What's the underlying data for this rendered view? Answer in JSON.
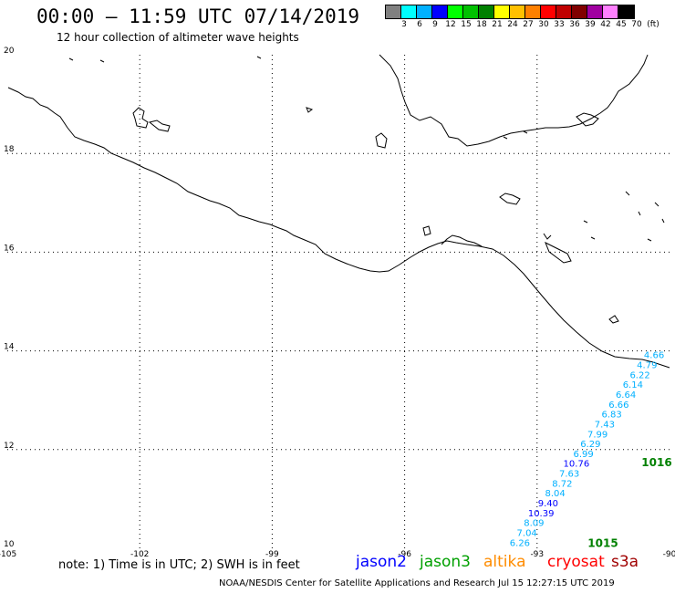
{
  "header": {
    "title": "00:00 – 11:59 UTC 07/14/2019",
    "subtitle": "12 hour collection of altimeter wave heights"
  },
  "legend": {
    "swatches": [
      {
        "label": "3",
        "color": "#808080"
      },
      {
        "label": "6",
        "color": "#00ffff"
      },
      {
        "label": "9",
        "color": "#00b0ff"
      },
      {
        "label": "12",
        "color": "#0000ff"
      },
      {
        "label": "15",
        "color": "#00ff00"
      },
      {
        "label": "18",
        "color": "#00c000"
      },
      {
        "label": "21",
        "color": "#008000"
      },
      {
        "label": "24",
        "color": "#ffff00"
      },
      {
        "label": "27",
        "color": "#ffc000"
      },
      {
        "label": "30",
        "color": "#ff8000"
      },
      {
        "label": "33",
        "color": "#ff0000"
      },
      {
        "label": "36",
        "color": "#c00000"
      },
      {
        "label": "39",
        "color": "#800000"
      },
      {
        "label": "42",
        "color": "#a000a0"
      },
      {
        "label": "45",
        "color": "#ff80ff"
      },
      {
        "label": "70",
        "color": "#000000"
      }
    ],
    "unit": "(ft)"
  },
  "map": {
    "lon_labels": [
      "-105",
      "-102",
      "-99",
      "-96",
      "-93",
      "-90"
    ],
    "lat_labels": [
      "20",
      "18",
      "16",
      "14",
      "12",
      "10"
    ],
    "lon_range": [
      -105,
      -90
    ],
    "lat_range": [
      10,
      20
    ]
  },
  "track": {
    "color_light": "#00b0ff",
    "color_dark": "#0000ff",
    "color_green": "#008000",
    "points": [
      {
        "lat": 13.85,
        "value": "4.66",
        "tone": "light"
      },
      {
        "lat": 13.65,
        "value": "4.79",
        "tone": "light"
      },
      {
        "lat": 13.45,
        "value": "6.22",
        "tone": "light"
      },
      {
        "lat": 13.25,
        "value": "6.14",
        "tone": "light"
      },
      {
        "lat": 13.05,
        "value": "6.64",
        "tone": "light"
      },
      {
        "lat": 12.85,
        "value": "6.66",
        "tone": "light"
      },
      {
        "lat": 12.65,
        "value": "6.83",
        "tone": "light"
      },
      {
        "lat": 12.45,
        "value": "7.43",
        "tone": "light"
      },
      {
        "lat": 12.25,
        "value": "7.99",
        "tone": "light"
      },
      {
        "lat": 12.05,
        "value": "6.29",
        "tone": "light"
      },
      {
        "lat": 11.85,
        "value": "6.99",
        "tone": "light"
      },
      {
        "lat": 11.65,
        "value": "10.76",
        "tone": "dark"
      },
      {
        "lat": 11.45,
        "value": "7.63",
        "tone": "light"
      },
      {
        "lat": 11.25,
        "value": "8.72",
        "tone": "light"
      },
      {
        "lat": 11.05,
        "value": "8.04",
        "tone": "light"
      },
      {
        "lat": 10.85,
        "value": "9.40",
        "tone": "dark"
      },
      {
        "lat": 10.65,
        "value": "10.39",
        "tone": "dark"
      },
      {
        "lat": 10.45,
        "value": "8.09",
        "tone": "light"
      },
      {
        "lat": 10.25,
        "value": "7.04",
        "tone": "light"
      },
      {
        "lat": 10.05,
        "value": "6.26",
        "tone": "light"
      }
    ],
    "time_labels": [
      {
        "lat": 11.68,
        "text": "1016"
      },
      {
        "lat": 10.05,
        "text": "1015"
      }
    ]
  },
  "footer": {
    "note": "note: 1) Time is in UTC; 2) SWH is in feet",
    "satellites": [
      {
        "name": "jason2",
        "color": "#0000ff"
      },
      {
        "name": "jason3",
        "color": "#00a000"
      },
      {
        "name": "altika",
        "color": "#ff8c00"
      },
      {
        "name": "cryosat",
        "color": "#ff0000"
      },
      {
        "name": "s3a",
        "color": "#a00000"
      }
    ],
    "credit": "NOAA/NESDIS Center for Satellite Applications and Research    Jul 15 12:27:15 UTC 2019"
  }
}
